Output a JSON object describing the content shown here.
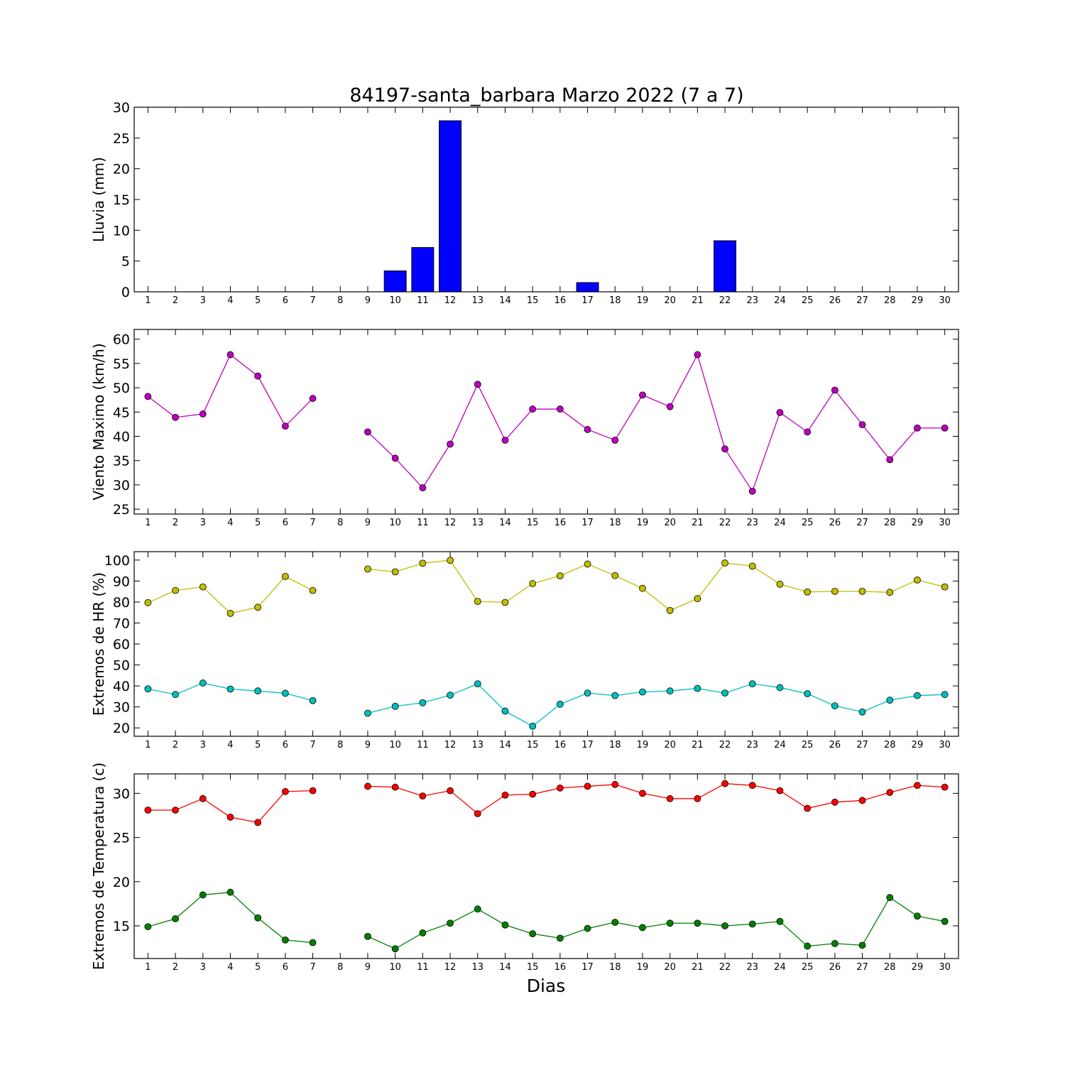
{
  "title": "84197-santa_barbara Marzo 2022  (7 a 7)",
  "xlabel": "Dias",
  "colors": {
    "rain_bar": "#0000ff",
    "wind": "#bf00bf",
    "hr_max": "#bfbf00",
    "hr_min": "#00bfbf",
    "temp_max": "#ff0000",
    "temp_min": "#008000"
  },
  "chart_data": [
    {
      "type": "bar",
      "ylabel": "Lluvia (mm)",
      "ylim": [
        0,
        30
      ],
      "yticks": [
        0,
        5,
        10,
        15,
        20,
        25,
        30
      ],
      "xlim": [
        0.5,
        30.5
      ],
      "categories": [
        1,
        2,
        3,
        4,
        5,
        6,
        7,
        8,
        9,
        10,
        11,
        12,
        13,
        14,
        15,
        16,
        17,
        18,
        19,
        20,
        21,
        22,
        23,
        24,
        25,
        26,
        27,
        28,
        29,
        30
      ],
      "series": [
        {
          "values": [
            0,
            0,
            0,
            0,
            0,
            0,
            0,
            0,
            0,
            3.4,
            7.2,
            27.8,
            0,
            0,
            0,
            0,
            1.5,
            0,
            0,
            0,
            0,
            8.3,
            0,
            0,
            0,
            0,
            0,
            0,
            0,
            0
          ]
        }
      ]
    },
    {
      "type": "line",
      "ylabel": "Viento Maximo (km/h)",
      "ylim": [
        24,
        62
      ],
      "yticks": [
        25,
        30,
        35,
        40,
        45,
        50,
        55,
        60
      ],
      "xlim": [
        0.5,
        30.5
      ],
      "x": [
        1,
        2,
        3,
        4,
        5,
        6,
        7,
        8,
        9,
        10,
        11,
        12,
        13,
        14,
        15,
        16,
        17,
        18,
        19,
        20,
        21,
        22,
        23,
        24,
        25,
        26,
        27,
        28,
        29,
        30
      ],
      "series": [
        {
          "values": [
            48.2,
            43.9,
            44.6,
            56.8,
            52.4,
            42.1,
            47.8,
            null,
            40.9,
            35.5,
            29.4,
            38.4,
            50.7,
            39.2,
            45.6,
            45.6,
            41.4,
            39.2,
            48.5,
            46.1,
            56.8,
            37.4,
            28.7,
            44.9,
            40.9,
            49.5,
            42.4,
            35.2,
            41.7,
            41.7
          ]
        }
      ]
    },
    {
      "type": "line",
      "ylabel": "Extremos de HR (%)",
      "ylim": [
        16,
        104
      ],
      "yticks": [
        20,
        30,
        40,
        50,
        60,
        70,
        80,
        90,
        100
      ],
      "xlim": [
        0.5,
        30.5
      ],
      "x": [
        1,
        2,
        3,
        4,
        5,
        6,
        7,
        8,
        9,
        10,
        11,
        12,
        13,
        14,
        15,
        16,
        17,
        18,
        19,
        20,
        21,
        22,
        23,
        24,
        25,
        26,
        27,
        28,
        29,
        30
      ],
      "series": [
        {
          "values": [
            79.7,
            85.5,
            87.2,
            74.6,
            77.5,
            92.2,
            85.5,
            null,
            95.7,
            94.4,
            98.5,
            99.9,
            80.3,
            79.8,
            88.8,
            92.5,
            98.1,
            92.6,
            86.5,
            76.0,
            81.6,
            98.6,
            97.1,
            88.5,
            84.8,
            85.1,
            85.1,
            84.6,
            90.5,
            87.2
          ]
        },
        {
          "values": [
            38.6,
            35.9,
            41.4,
            38.5,
            37.6,
            36.5,
            33.0,
            null,
            27.0,
            30.3,
            32.0,
            35.6,
            41.0,
            28.0,
            20.8,
            31.3,
            36.6,
            35.4,
            37.1,
            37.6,
            38.8,
            36.6,
            41.0,
            39.2,
            36.3,
            30.5,
            27.6,
            33.2,
            35.4,
            35.9
          ]
        }
      ]
    },
    {
      "type": "line",
      "ylabel": "Extremos de Temperatura (c)",
      "ylim": [
        11.3,
        32.2
      ],
      "yticks": [
        15,
        20,
        25,
        30
      ],
      "xlim": [
        0.5,
        30.5
      ],
      "x": [
        1,
        2,
        3,
        4,
        5,
        6,
        7,
        8,
        9,
        10,
        11,
        12,
        13,
        14,
        15,
        16,
        17,
        18,
        19,
        20,
        21,
        22,
        23,
        24,
        25,
        26,
        27,
        28,
        29,
        30
      ],
      "series": [
        {
          "values": [
            28.1,
            28.1,
            29.4,
            27.3,
            26.7,
            30.2,
            30.3,
            null,
            30.8,
            30.7,
            29.7,
            30.3,
            27.7,
            29.8,
            29.9,
            30.6,
            30.8,
            31.0,
            30.0,
            29.4,
            29.4,
            31.1,
            30.9,
            30.3,
            28.3,
            29.0,
            29.2,
            30.1,
            30.9,
            30.7
          ]
        },
        {
          "values": [
            14.9,
            15.8,
            18.5,
            18.8,
            15.9,
            13.4,
            13.1,
            null,
            13.8,
            12.4,
            14.2,
            15.3,
            16.9,
            15.1,
            14.1,
            13.6,
            14.7,
            15.4,
            14.8,
            15.3,
            15.3,
            15.0,
            15.2,
            15.5,
            12.7,
            13.0,
            12.8,
            18.2,
            16.1,
            15.5
          ]
        }
      ]
    }
  ]
}
